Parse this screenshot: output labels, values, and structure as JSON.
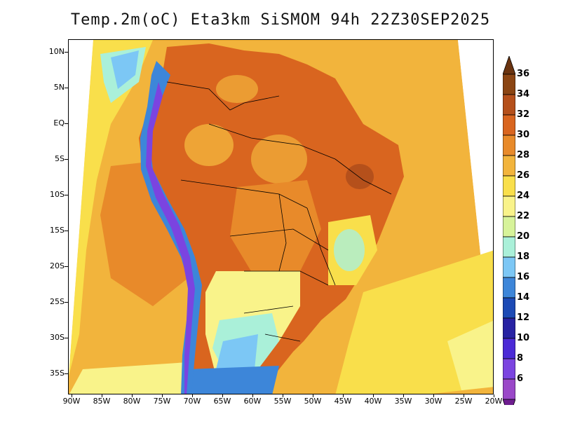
{
  "title": "Temp.2m(oC) Eta3km SiSMOM 94h 22Z30SEP2025",
  "lat_labels": [
    "10N",
    "5N",
    "EQ",
    "5S",
    "10S",
    "15S",
    "20S",
    "25S",
    "30S",
    "35S"
  ],
  "lon_labels": [
    "90W",
    "85W",
    "80W",
    "75W",
    "70W",
    "65W",
    "60W",
    "55W",
    "50W",
    "45W",
    "40W",
    "35W",
    "30W",
    "25W",
    "20W"
  ],
  "colorbar": {
    "labels": [
      "36",
      "34",
      "32",
      "30",
      "28",
      "26",
      "24",
      "22",
      "20",
      "18",
      "16",
      "14",
      "12",
      "10",
      "8",
      "6"
    ],
    "colors": [
      "#6b3410",
      "#8b4513",
      "#b5501b",
      "#d9651f",
      "#e88a2a",
      "#f2b43c",
      "#f9df4b",
      "#f9f38a",
      "#d7f39a",
      "#aaf0d9",
      "#7cc7f5",
      "#3d86d9",
      "#1c4ab5",
      "#2722a3",
      "#4b2ad6",
      "#7b44e0",
      "#9a48c8",
      "#6e1e8f"
    ]
  },
  "map_colors": {
    "ocean_far": "#f2b43c",
    "ocean_mid": "#e88a2a",
    "ocean_cool": "#f9df4b",
    "ocean_coast": "#f9f38a",
    "land_hot": "#d9651f",
    "land_warm": "#e88a2a",
    "land_hotspot": "#f2b43c",
    "andes_high": "#7b44e0",
    "andes_mid": "#3d86d9",
    "south_cool": "#aaf0d9",
    "south_cold": "#7cc7f5",
    "south_colder": "#3d86d9"
  }
}
